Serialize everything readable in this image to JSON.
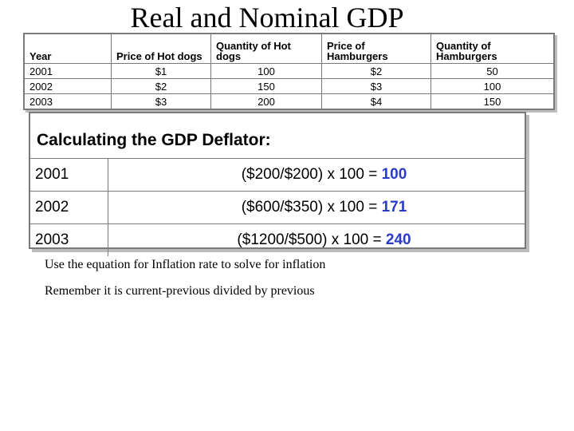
{
  "title": "Real and Nominal GDP",
  "table": {
    "headers": [
      "Year",
      "Price of Hot dogs",
      "Quantity of Hot dogs",
      "Price of Hamburgers",
      "Quantity of Hamburgers"
    ],
    "rows": [
      [
        "2001",
        "$1",
        "100",
        "$2",
        "50"
      ],
      [
        "2002",
        "$2",
        "150",
        "$3",
        "100"
      ],
      [
        "2003",
        "$3",
        "200",
        "$4",
        "150"
      ]
    ]
  },
  "deflator": {
    "title": "Calculating the GDP Deflator:",
    "rows": [
      {
        "year": "2001",
        "equation": "($200/$200) x 100 =",
        "result": "100"
      },
      {
        "year": "2002",
        "equation": "($600/$350) x 100 =",
        "result": "171"
      },
      {
        "year": "2003",
        "equation": "($1200/$500) x 100 =",
        "result": "240"
      }
    ]
  },
  "notes": [
    "Use the equation for Inflation rate to solve for inflation",
    "Remember it is current-previous divided by previous"
  ]
}
